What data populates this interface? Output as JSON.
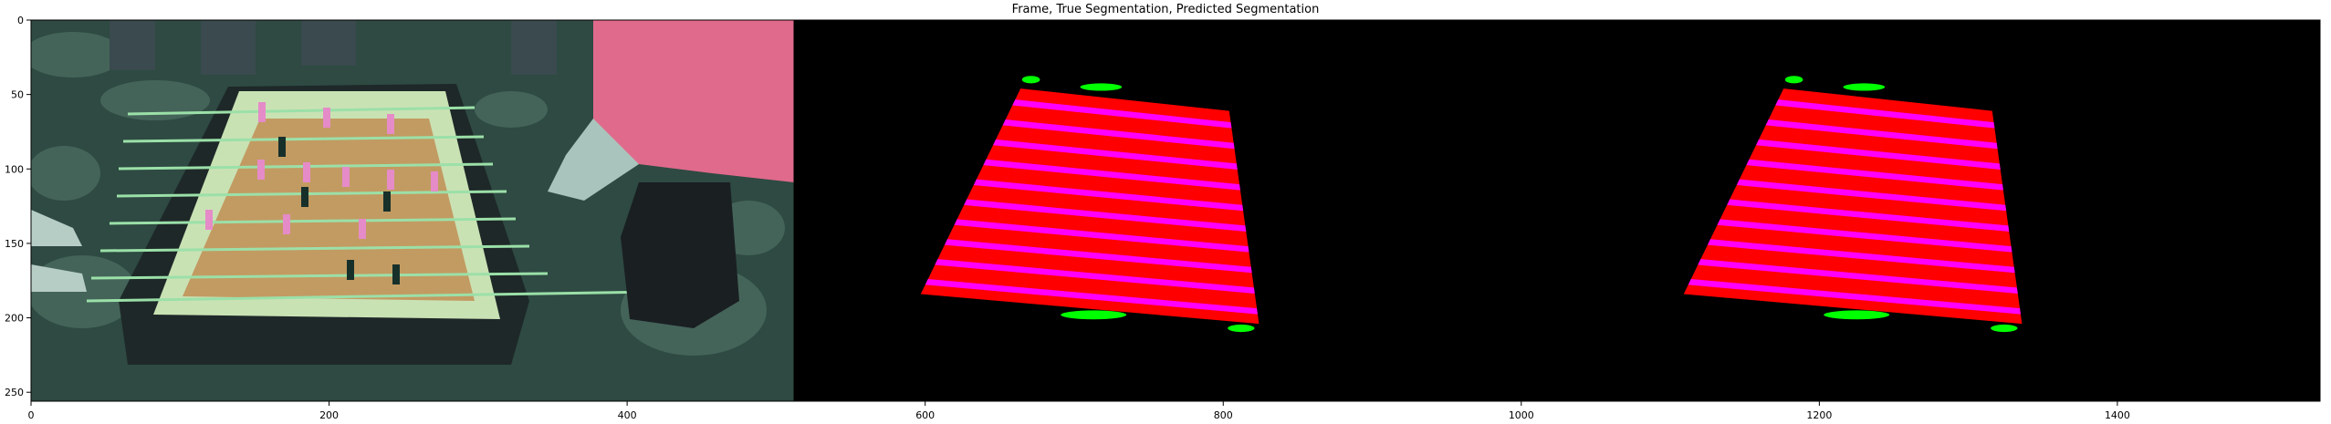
{
  "figure": {
    "title": "Frame, True Segmentation, Predicted Segmentation",
    "panels": [
      "Frame",
      "True Segmentation",
      "Predicted Segmentation"
    ]
  },
  "axes": {
    "x_ticks": [
      0,
      200,
      400,
      600,
      800,
      1000,
      1200,
      1400
    ],
    "y_ticks": [
      0,
      50,
      100,
      150,
      200,
      250
    ],
    "xlim": [
      0,
      1536
    ],
    "ylim": [
      256,
      0
    ]
  },
  "segmentation_colors": {
    "table_field": "#ff0000",
    "rod_rows": "#ff00ff",
    "goal_markers": "#00ff00",
    "background": "#000000"
  },
  "frame_colors": {
    "floor": "#2e4a42",
    "table_field": "#c9e2b4",
    "shirt": "#e06a8c",
    "table_frame": "#1e2828"
  }
}
